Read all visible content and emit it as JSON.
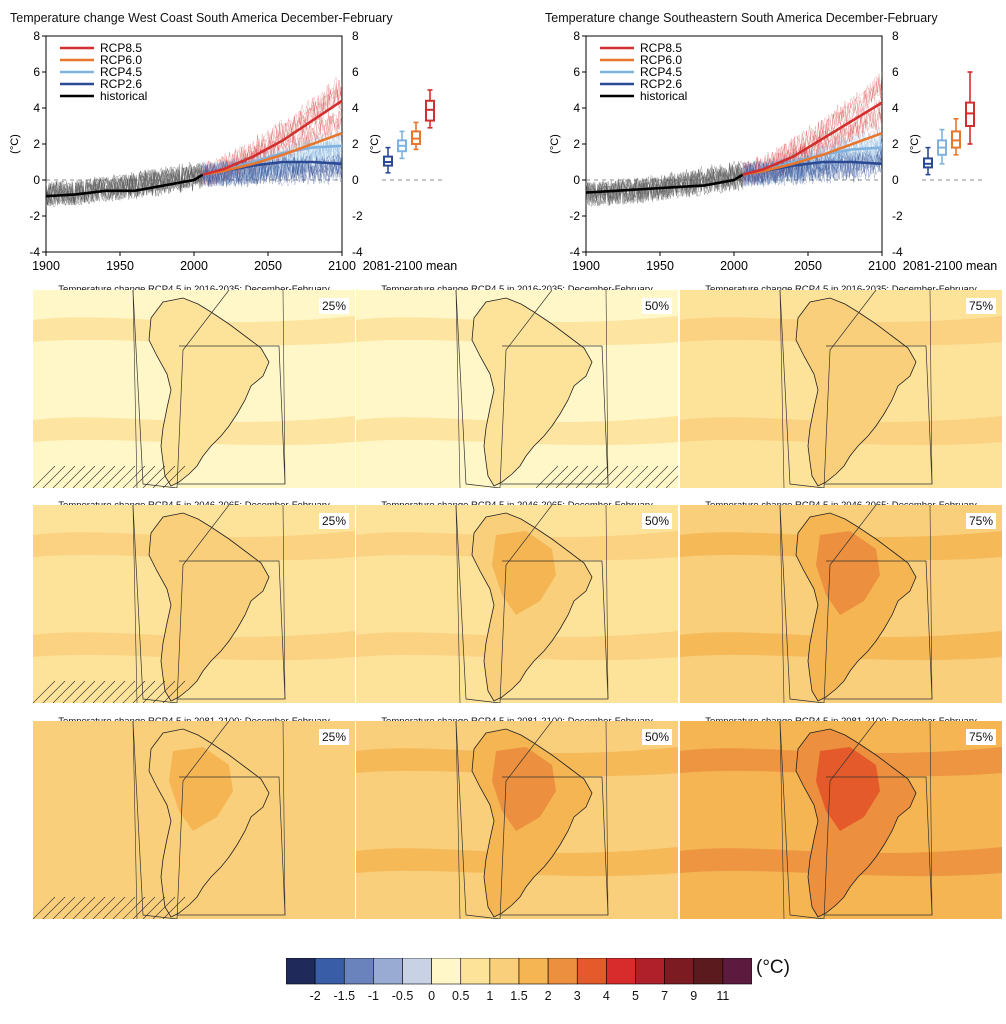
{
  "timeseries": [
    {
      "title": "Temperature change West Coast South America December-February"
    },
    {
      "title": "Temperature change Southeastern South America December-February"
    }
  ],
  "colors": {
    "rcp85": "#d32f2f",
    "rcp60": "#e8772e",
    "rcp45": "#7fb2df",
    "rcp26": "#2c4a94",
    "historical": "#000000",
    "map_palette": [
      "#fff7c8",
      "#fde29a",
      "#f9cf7c",
      "#f4b552",
      "#ec8f3e",
      "#e45a2a"
    ],
    "colorbar": [
      "#1f2a5a",
      "#3a5da7",
      "#6b83bd",
      "#99abd3",
      "#c9d2e4",
      "#fff7c8",
      "#fde29a",
      "#f9cf7c",
      "#f4b552",
      "#ec8f3e",
      "#e45a2a",
      "#d82b2b",
      "#b0202a",
      "#7d1b22",
      "#5a1a1e",
      "#5b1a3e"
    ]
  },
  "chart_data": [
    {
      "type": "line",
      "title": "Temperature change West Coast South America December-February",
      "ylabel": "(°C)",
      "xlim": [
        1900,
        2100
      ],
      "ylim": [
        -4,
        8
      ],
      "xticks": [
        "1900",
        "1950",
        "2000",
        "2050",
        "2100"
      ],
      "yticks": [
        "-4",
        "-2",
        "0",
        "2",
        "4",
        "6",
        "8"
      ],
      "legend_position": "top-left",
      "series": [
        {
          "name": "RCP8.5",
          "x": [
            2006,
            2020,
            2040,
            2060,
            2080,
            2100
          ],
          "values": [
            0.3,
            0.6,
            1.3,
            2.2,
            3.3,
            4.4
          ]
        },
        {
          "name": "RCP6.0",
          "x": [
            2006,
            2020,
            2040,
            2060,
            2080,
            2100
          ],
          "values": [
            0.3,
            0.5,
            0.9,
            1.4,
            2.0,
            2.6
          ]
        },
        {
          "name": "RCP4.5",
          "x": [
            2006,
            2020,
            2040,
            2060,
            2080,
            2100
          ],
          "values": [
            0.3,
            0.5,
            1.0,
            1.5,
            1.8,
            1.9
          ]
        },
        {
          "name": "RCP2.6",
          "x": [
            2006,
            2020,
            2040,
            2060,
            2080,
            2100
          ],
          "values": [
            0.3,
            0.5,
            0.8,
            1.0,
            1.0,
            0.9
          ]
        },
        {
          "name": "historical",
          "x": [
            1900,
            1920,
            1940,
            1960,
            1980,
            2000,
            2006
          ],
          "values": [
            -0.9,
            -0.8,
            -0.6,
            -0.6,
            -0.3,
            0.0,
            0.3
          ]
        }
      ],
      "mean_label": "2081-2100 mean",
      "boxes": [
        {
          "name": "RCP2.6",
          "min": 0.4,
          "q1": 0.8,
          "median": 1.0,
          "q3": 1.3,
          "max": 1.8
        },
        {
          "name": "RCP4.5",
          "min": 1.2,
          "q1": 1.6,
          "median": 1.9,
          "q3": 2.2,
          "max": 2.7
        },
        {
          "name": "RCP6.0",
          "min": 1.7,
          "q1": 2.0,
          "median": 2.3,
          "q3": 2.7,
          "max": 3.2
        },
        {
          "name": "RCP8.5",
          "min": 2.9,
          "q1": 3.3,
          "median": 3.9,
          "q3": 4.4,
          "max": 5.0
        }
      ]
    },
    {
      "type": "line",
      "title": "Temperature change Southeastern South America December-February",
      "ylabel": "(°C)",
      "xlim": [
        1900,
        2100
      ],
      "ylim": [
        -4,
        8
      ],
      "xticks": [
        "1900",
        "1950",
        "2000",
        "2050",
        "2100"
      ],
      "yticks": [
        "-4",
        "-2",
        "0",
        "2",
        "4",
        "6",
        "8"
      ],
      "legend_position": "top-left",
      "series": [
        {
          "name": "RCP8.5",
          "x": [
            2006,
            2020,
            2040,
            2060,
            2080,
            2100
          ],
          "values": [
            0.3,
            0.6,
            1.3,
            2.3,
            3.3,
            4.3
          ]
        },
        {
          "name": "RCP6.0",
          "x": [
            2006,
            2020,
            2040,
            2060,
            2080,
            2100
          ],
          "values": [
            0.3,
            0.5,
            0.9,
            1.4,
            2.0,
            2.6
          ]
        },
        {
          "name": "RCP4.5",
          "x": [
            2006,
            2020,
            2040,
            2060,
            2080,
            2100
          ],
          "values": [
            0.3,
            0.5,
            1.0,
            1.4,
            1.7,
            1.8
          ]
        },
        {
          "name": "RCP2.6",
          "x": [
            2006,
            2020,
            2040,
            2060,
            2080,
            2100
          ],
          "values": [
            0.3,
            0.5,
            0.8,
            1.0,
            1.0,
            0.9
          ]
        },
        {
          "name": "historical",
          "x": [
            1900,
            1920,
            1940,
            1960,
            1980,
            2000,
            2006
          ],
          "values": [
            -0.7,
            -0.6,
            -0.5,
            -0.4,
            -0.3,
            0.0,
            0.3
          ]
        }
      ],
      "mean_label": "2081-2100 mean",
      "boxes": [
        {
          "name": "RCP2.6",
          "min": 0.3,
          "q1": 0.7,
          "median": 0.9,
          "q3": 1.2,
          "max": 1.8
        },
        {
          "name": "RCP4.5",
          "min": 0.9,
          "q1": 1.4,
          "median": 1.8,
          "q3": 2.2,
          "max": 2.8
        },
        {
          "name": "RCP6.0",
          "min": 1.4,
          "q1": 1.8,
          "median": 2.2,
          "q3": 2.7,
          "max": 3.4
        },
        {
          "name": "RCP8.5",
          "min": 2.0,
          "q1": 3.0,
          "median": 3.7,
          "q3": 4.3,
          "max": 6.0
        }
      ]
    },
    {
      "type": "heatmap",
      "colorbar": {
        "unit": "(°C)",
        "ticks": [
          "-2",
          "-1.5",
          "-1",
          "-0.5",
          "0",
          "0.5",
          "1",
          "1.5",
          "2",
          "3",
          "4",
          "5",
          "7",
          "9",
          "11"
        ]
      },
      "maps": [
        {
          "title": "Temperature change RCP4.5 in 2016-2035: December-February",
          "percentile": "25%",
          "hatched": true
        },
        {
          "title": "Temperature change RCP4.5 in 2016-2035: December-February",
          "percentile": "50%",
          "hatched": true
        },
        {
          "title": "Temperature change RCP4.5 in 2016-2035: December-February",
          "percentile": "75%",
          "hatched": false
        },
        {
          "title": "Temperature change RCP4.5 in 2046-2065: December-February",
          "percentile": "25%",
          "hatched": true
        },
        {
          "title": "Temperature change RCP4.5 in 2046-2065: December-February",
          "percentile": "50%",
          "hatched": false
        },
        {
          "title": "Temperature change RCP4.5 in 2046-2065: December-February",
          "percentile": "75%",
          "hatched": false
        },
        {
          "title": "Temperature change RCP4.5 in 2081-2100: December-February",
          "percentile": "25%",
          "hatched": true
        },
        {
          "title": "Temperature change RCP4.5 in 2081-2100: December-February",
          "percentile": "50%",
          "hatched": false
        },
        {
          "title": "Temperature change RCP4.5 in 2081-2100: December-February",
          "percentile": "75%",
          "hatched": false
        }
      ]
    }
  ]
}
